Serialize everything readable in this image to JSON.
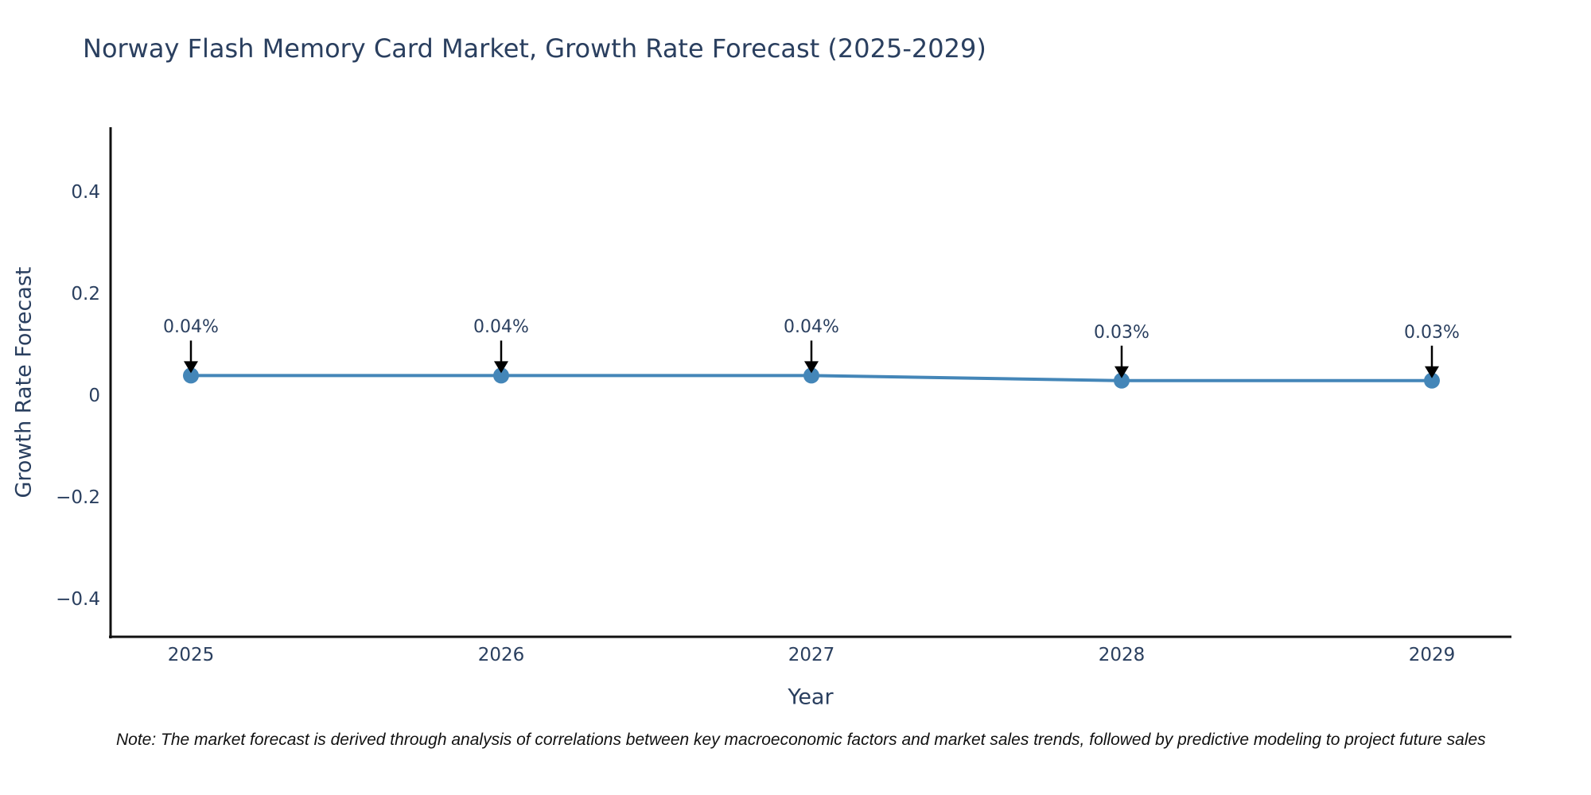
{
  "title": "Norway Flash Memory Card Market, Growth Rate Forecast (2025-2029)",
  "note": "Note: The market forecast is derived through analysis of correlations between key macroeconomic factors and market sales trends, followed by predictive modeling to project future sales",
  "chart_data": {
    "type": "line",
    "title": "Norway Flash Memory Card Market, Growth Rate Forecast (2025-2029)",
    "xlabel": "Year",
    "ylabel": "Growth Rate Forecast",
    "x": [
      2025,
      2026,
      2027,
      2028,
      2029
    ],
    "x_labels": [
      "2025",
      "2026",
      "2027",
      "2028",
      "2029"
    ],
    "series": [
      {
        "name": "Growth Rate Forecast",
        "values": [
          0.04,
          0.04,
          0.04,
          0.03,
          0.03
        ],
        "point_labels": [
          "0.04%",
          "0.04%",
          "0.04%",
          "0.03%",
          "0.03%"
        ]
      }
    ],
    "yticks": [
      0.4,
      0.2,
      0,
      -0.2,
      -0.4
    ],
    "ytick_labels": [
      "0.4",
      "0.2",
      "0",
      "−0.2",
      "−0.4"
    ],
    "ylim": [
      -0.48,
      0.53
    ],
    "grid": false,
    "legend_position": "none",
    "colors": {
      "line": "#4486b8",
      "marker": "#4486b8",
      "arrow": "#000000",
      "text": "#2a3f5f",
      "axis": "#111111",
      "background": "#ffffff"
    }
  }
}
